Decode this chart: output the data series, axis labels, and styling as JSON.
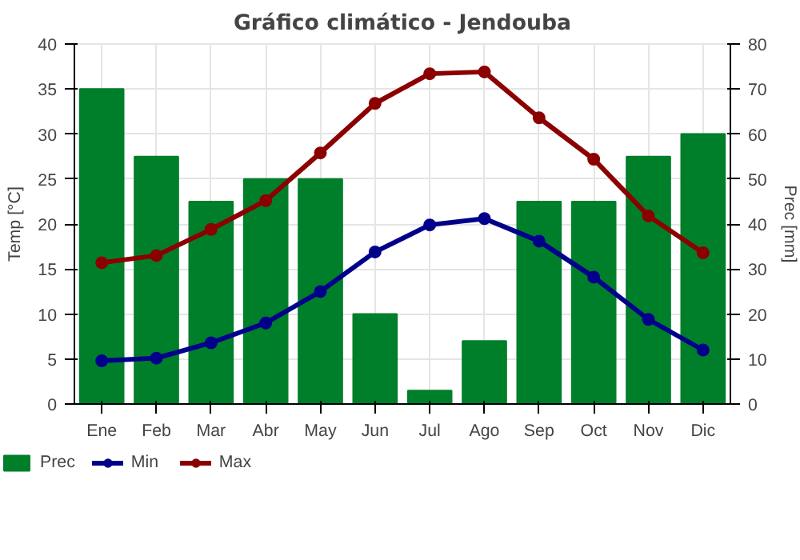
{
  "chart_data": {
    "type": "bar",
    "title": "Gráfico climático - Jendouba",
    "categories": [
      "Ene",
      "Feb",
      "Mar",
      "Abr",
      "May",
      "Jun",
      "Jul",
      "Ago",
      "Sep",
      "Oct",
      "Nov",
      "Dic"
    ],
    "series": [
      {
        "name": "Prec",
        "axis": "y2",
        "color": "#007f2a",
        "values": [
          70,
          55,
          45,
          50,
          50,
          20,
          3,
          14,
          45,
          45,
          55,
          60
        ]
      },
      {
        "name": "Min",
        "type": "line",
        "color": "#00008b",
        "values": [
          4.8,
          5.1,
          6.8,
          9.0,
          12.5,
          16.9,
          19.9,
          20.6,
          18.1,
          14.1,
          9.4,
          6.0
        ]
      },
      {
        "name": "Max",
        "type": "line",
        "color": "#8b0000",
        "values": [
          15.7,
          16.5,
          19.4,
          22.6,
          27.9,
          33.4,
          36.7,
          36.9,
          31.8,
          27.2,
          20.9,
          16.8
        ]
      }
    ],
    "ylabel": "Temp [°C]",
    "y2label": "Prec [mm]",
    "ylim": [
      0,
      40
    ],
    "yticks": [
      0,
      5,
      10,
      15,
      20,
      25,
      30,
      35,
      40
    ],
    "y2lim": [
      0,
      80
    ],
    "y2ticks": [
      0,
      10,
      20,
      30,
      40,
      50,
      60,
      70,
      80
    ],
    "grid": true,
    "legend": "bottom",
    "marker": "circle",
    "line_style": "solid"
  }
}
